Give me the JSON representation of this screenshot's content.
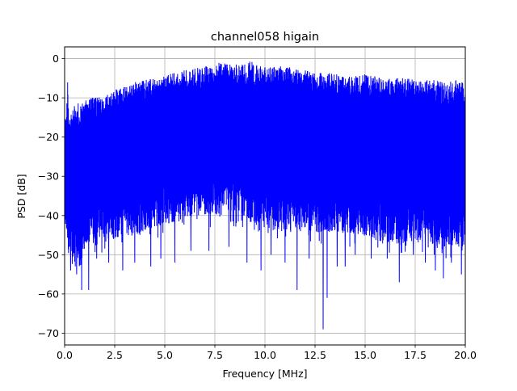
{
  "chart_data": {
    "type": "line",
    "title": "channel058 higain",
    "xlabel": "Frequency [MHz]",
    "ylabel": "PSD [dB]",
    "xlim": [
      0.0,
      20.0
    ],
    "ylim": [
      -73,
      3
    ],
    "grid": true,
    "line_color": "#0000ff",
    "x_ticks": [
      0.0,
      2.5,
      5.0,
      7.5,
      10.0,
      12.5,
      15.0,
      17.5,
      20.0
    ],
    "x_tick_labels": [
      "0.0",
      "2.5",
      "5.0",
      "7.5",
      "10.0",
      "12.5",
      "15.0",
      "17.5",
      "20.0"
    ],
    "y_ticks": [
      0,
      -10,
      -20,
      -30,
      -40,
      -50,
      -60,
      -70
    ],
    "y_tick_labels": [
      "0",
      "−10",
      "−20",
      "−30",
      "−40",
      "−50",
      "−60",
      "−70"
    ],
    "series": [
      {
        "x": [
          0.0,
          0.1,
          0.15,
          0.2,
          0.3,
          0.5,
          0.8,
          1.0,
          1.2,
          1.5,
          2.0,
          2.5,
          3.0,
          3.5,
          4.0,
          4.5,
          5.0,
          5.5,
          6.0,
          6.5,
          7.0,
          7.5,
          8.0,
          8.5,
          9.0,
          9.3,
          9.5,
          10.0,
          10.5,
          11.0,
          11.5,
          12.0,
          12.5,
          13.0,
          13.5,
          14.0,
          14.5,
          15.0,
          15.5,
          16.0,
          16.5,
          17.0,
          17.5,
          18.0,
          18.5,
          19.0,
          19.5,
          20.0
        ],
        "upper": [
          -15,
          -13,
          -5.5,
          -14,
          -13,
          -12,
          -11,
          -10.5,
          -10,
          -10,
          -9.5,
          -8,
          -7,
          -6,
          -5.5,
          -5,
          -4.5,
          -3.5,
          -3,
          -2.5,
          -2,
          -1.5,
          -0.5,
          -1.5,
          -1.5,
          -0.5,
          -1.5,
          -2,
          -2,
          -2,
          -2.5,
          -3,
          -3.5,
          -3.5,
          -4,
          -4,
          -4.5,
          -4,
          -4.5,
          -5,
          -5,
          -5,
          -5.5,
          -5.5,
          -5.5,
          -6,
          -5.5,
          -6
        ],
        "lower": [
          -44,
          -45,
          -47,
          -50,
          -52,
          -53,
          -54,
          -48,
          -47,
          -48,
          -46,
          -46,
          -45,
          -45,
          -44,
          -43,
          -42,
          -42,
          -42,
          -40,
          -40,
          -40,
          -38,
          -40,
          -40,
          -42,
          -43,
          -43,
          -44,
          -44,
          -44,
          -44,
          -44,
          -45,
          -44,
          -45,
          -45,
          -46,
          -46,
          -47,
          -47,
          -47,
          -47,
          -47,
          -48,
          -48,
          -48,
          -48
        ],
        "dips": [
          [
            0.3,
            -54
          ],
          [
            0.6,
            -55
          ],
          [
            0.85,
            -59
          ],
          [
            1.2,
            -59
          ],
          [
            1.6,
            -51
          ],
          [
            2.2,
            -52
          ],
          [
            2.9,
            -54
          ],
          [
            3.5,
            -52
          ],
          [
            4.3,
            -53
          ],
          [
            4.8,
            -51
          ],
          [
            5.5,
            -52
          ],
          [
            6.3,
            -49
          ],
          [
            7.2,
            -49
          ],
          [
            8.2,
            -48
          ],
          [
            9.1,
            -52
          ],
          [
            9.8,
            -54
          ],
          [
            10.3,
            -50
          ],
          [
            11.0,
            -52
          ],
          [
            11.6,
            -59
          ],
          [
            12.2,
            -51
          ],
          [
            12.9,
            -69
          ],
          [
            13.1,
            -61
          ],
          [
            13.6,
            -53
          ],
          [
            14.0,
            -53
          ],
          [
            14.5,
            -50
          ],
          [
            15.3,
            -51
          ],
          [
            16.1,
            -51
          ],
          [
            16.7,
            -57
          ],
          [
            17.4,
            -50
          ],
          [
            18.0,
            -52
          ],
          [
            18.5,
            -54
          ],
          [
            18.9,
            -56
          ],
          [
            19.3,
            -52
          ],
          [
            19.8,
            -55
          ]
        ]
      }
    ]
  }
}
